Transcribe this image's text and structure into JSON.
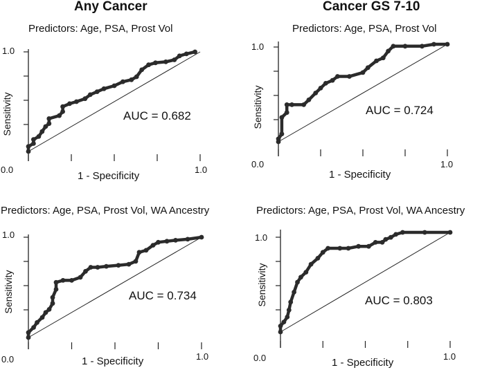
{
  "columns": [
    {
      "title": "Any Cancer"
    },
    {
      "title": "Cancer GS 7-10"
    }
  ],
  "chart_data": [
    {
      "type": "line",
      "column": "Any Cancer",
      "title": "Predictors: Age, PSA, Prost Vol",
      "xlabel": "1 - Specificity",
      "ylabel": "Sensitivity",
      "xlim": [
        0,
        1
      ],
      "ylim": [
        0,
        1
      ],
      "x_tick_labels": [
        "0.0",
        "1.0"
      ],
      "y_tick_labels": [
        "1.0"
      ],
      "annotation": "AUC = 0.682",
      "auc": 0.682,
      "reference_line": "diagonal",
      "roc_points": [
        [
          0,
          0
        ],
        [
          0,
          0.05
        ],
        [
          0.03,
          0.08
        ],
        [
          0.03,
          0.12
        ],
        [
          0.06,
          0.15
        ],
        [
          0.08,
          0.2
        ],
        [
          0.1,
          0.25
        ],
        [
          0.12,
          0.28
        ],
        [
          0.12,
          0.33
        ],
        [
          0.18,
          0.36
        ],
        [
          0.2,
          0.4
        ],
        [
          0.2,
          0.45
        ],
        [
          0.24,
          0.48
        ],
        [
          0.28,
          0.5
        ],
        [
          0.33,
          0.53
        ],
        [
          0.36,
          0.57
        ],
        [
          0.4,
          0.6
        ],
        [
          0.44,
          0.63
        ],
        [
          0.5,
          0.66
        ],
        [
          0.55,
          0.7
        ],
        [
          0.6,
          0.72
        ],
        [
          0.63,
          0.75
        ],
        [
          0.66,
          0.82
        ],
        [
          0.7,
          0.87
        ],
        [
          0.74,
          0.89
        ],
        [
          0.8,
          0.9
        ],
        [
          0.85,
          0.92
        ],
        [
          0.88,
          0.96
        ],
        [
          0.92,
          0.98
        ],
        [
          0.97,
          1.0
        ]
      ]
    },
    {
      "type": "line",
      "column": "Cancer GS 7-10",
      "title": "Predictors: Age, PSA, Prost Vol",
      "xlabel": "1 - Specificity",
      "ylabel": "Sensitivity",
      "xlim": [
        0,
        1
      ],
      "ylim": [
        0,
        1
      ],
      "x_tick_labels": [
        "0.0",
        "1.0"
      ],
      "y_tick_labels": [
        "1.0"
      ],
      "annotation": "AUC = 0.724",
      "auc": 0.724,
      "reference_line": "diagonal",
      "roc_points": [
        [
          0,
          0
        ],
        [
          0,
          0.03
        ],
        [
          0.02,
          0.08
        ],
        [
          0.02,
          0.25
        ],
        [
          0.05,
          0.3
        ],
        [
          0.05,
          0.38
        ],
        [
          0.08,
          0.38
        ],
        [
          0.15,
          0.38
        ],
        [
          0.18,
          0.43
        ],
        [
          0.22,
          0.5
        ],
        [
          0.25,
          0.55
        ],
        [
          0.28,
          0.6
        ],
        [
          0.32,
          0.63
        ],
        [
          0.35,
          0.67
        ],
        [
          0.42,
          0.67
        ],
        [
          0.5,
          0.71
        ],
        [
          0.53,
          0.76
        ],
        [
          0.58,
          0.83
        ],
        [
          0.62,
          0.86
        ],
        [
          0.65,
          0.93
        ],
        [
          0.68,
          0.98
        ],
        [
          0.75,
          0.98
        ],
        [
          0.85,
          0.98
        ],
        [
          0.92,
          1.0
        ],
        [
          1.0,
          1.0
        ]
      ]
    },
    {
      "type": "line",
      "column": "Any Cancer",
      "title": "Predictors: Age, PSA, Prost Vol, WA Ancestry",
      "xlabel": "1 - Specificity",
      "ylabel": "Sensitivity",
      "xlim": [
        0,
        1
      ],
      "ylim": [
        0,
        1
      ],
      "x_tick_labels": [
        "0.0",
        "1.0"
      ],
      "y_tick_labels": [
        "1.0"
      ],
      "annotation": "AUC = 0.734",
      "auc": 0.734,
      "reference_line": "diagonal",
      "roc_points": [
        [
          0,
          0
        ],
        [
          0,
          0.05
        ],
        [
          0.03,
          0.1
        ],
        [
          0.05,
          0.15
        ],
        [
          0.08,
          0.2
        ],
        [
          0.1,
          0.25
        ],
        [
          0.12,
          0.28
        ],
        [
          0.14,
          0.34
        ],
        [
          0.14,
          0.4
        ],
        [
          0.16,
          0.48
        ],
        [
          0.16,
          0.55
        ],
        [
          0.2,
          0.57
        ],
        [
          0.25,
          0.57
        ],
        [
          0.3,
          0.6
        ],
        [
          0.33,
          0.66
        ],
        [
          0.36,
          0.7
        ],
        [
          0.4,
          0.7
        ],
        [
          0.45,
          0.71
        ],
        [
          0.52,
          0.72
        ],
        [
          0.58,
          0.73
        ],
        [
          0.62,
          0.76
        ],
        [
          0.64,
          0.85
        ],
        [
          0.68,
          0.87
        ],
        [
          0.72,
          0.92
        ],
        [
          0.75,
          0.95
        ],
        [
          0.8,
          0.96
        ],
        [
          0.85,
          0.97
        ],
        [
          0.92,
          0.98
        ],
        [
          1.0,
          1.0
        ]
      ]
    },
    {
      "type": "line",
      "column": "Cancer GS 7-10",
      "title": "Predictors: Age, PSA, Prost Vol, WA Ancestry",
      "xlabel": "1 - Specificity",
      "ylabel": "Sensitivity",
      "xlim": [
        0,
        1
      ],
      "ylim": [
        0,
        1
      ],
      "x_tick_labels": [
        "0.0",
        "1.0"
      ],
      "y_tick_labels": [
        "1.0"
      ],
      "annotation": "AUC = 0.803",
      "auc": 0.803,
      "reference_line": "diagonal",
      "roc_points": [
        [
          0,
          0
        ],
        [
          0,
          0.06
        ],
        [
          0.02,
          0.1
        ],
        [
          0.04,
          0.15
        ],
        [
          0.05,
          0.22
        ],
        [
          0.06,
          0.3
        ],
        [
          0.08,
          0.4
        ],
        [
          0.1,
          0.5
        ],
        [
          0.12,
          0.55
        ],
        [
          0.15,
          0.6
        ],
        [
          0.18,
          0.68
        ],
        [
          0.22,
          0.74
        ],
        [
          0.25,
          0.8
        ],
        [
          0.28,
          0.84
        ],
        [
          0.35,
          0.84
        ],
        [
          0.4,
          0.84
        ],
        [
          0.46,
          0.86
        ],
        [
          0.52,
          0.86
        ],
        [
          0.56,
          0.9
        ],
        [
          0.6,
          0.9
        ],
        [
          0.62,
          0.93
        ],
        [
          0.65,
          0.95
        ],
        [
          0.68,
          0.98
        ],
        [
          0.72,
          1.0
        ],
        [
          0.85,
          1.0
        ],
        [
          1.0,
          1.0
        ]
      ]
    }
  ]
}
